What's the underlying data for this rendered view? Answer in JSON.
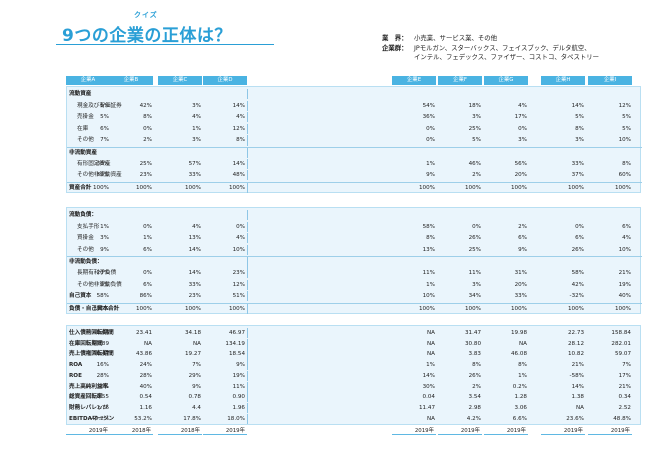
{
  "header": {
    "quiz_tag": "クイズ",
    "title": "9つの企業の正体は？",
    "industry_label": "業　界：",
    "industry_value": "小売業、サービス業、その他",
    "group_label": "企業群：",
    "group_line1": "JPモルガン、スターバックス、フェイスブック、デルタ航空、",
    "group_line2": "インテル、フェデックス、ファイザー、コストコ、タペストリー"
  },
  "companies": [
    "企業A",
    "企業B",
    "企業C",
    "企業D",
    "企業E",
    "企業F",
    "企業G",
    "企業H",
    "企業I"
  ],
  "section1": {
    "rows": [
      {
        "label": "流動資産",
        "style": "bold",
        "values": [
          "",
          "",
          "",
          "",
          "",
          "",
          "",
          "",
          ""
        ]
      },
      {
        "label": "現金及び有価証券",
        "style": "indent",
        "values": [
          "5%",
          "42%",
          "3%",
          "14%",
          "54%",
          "18%",
          "4%",
          "14%",
          "12%"
        ]
      },
      {
        "label": "売掛金",
        "style": "indent",
        "values": [
          "5%",
          "8%",
          "4%",
          "4%",
          "36%",
          "3%",
          "17%",
          "5%",
          "5%"
        ]
      },
      {
        "label": "在庫",
        "style": "indent",
        "values": [
          "6%",
          "0%",
          "1%",
          "12%",
          "0%",
          "25%",
          "0%",
          "8%",
          "5%"
        ]
      },
      {
        "label": "その他",
        "style": "indent",
        "values": [
          "7%",
          "2%",
          "3%",
          "8%",
          "0%",
          "5%",
          "3%",
          "3%",
          "10%"
        ]
      },
      {
        "label": "非流動資産",
        "style": "bold rule",
        "values": [
          "",
          "",
          "",
          "",
          "",
          "",
          "",
          "",
          ""
        ]
      },
      {
        "label": "有形固定資産",
        "style": "indent",
        "values": [
          "38%",
          "25%",
          "57%",
          "14%",
          "1%",
          "46%",
          "56%",
          "33%",
          "8%"
        ]
      },
      {
        "label": "その他非流動資産",
        "style": "indent",
        "values": [
          "39%",
          "23%",
          "33%",
          "48%",
          "9%",
          "2%",
          "20%",
          "37%",
          "60%"
        ]
      },
      {
        "label": "資産合計",
        "style": "bold rule",
        "values": [
          "100%",
          "100%",
          "100%",
          "100%",
          "100%",
          "100%",
          "100%",
          "100%",
          "100%"
        ]
      }
    ]
  },
  "section2": {
    "rows": [
      {
        "label": "流動負債：",
        "style": "bold",
        "values": [
          "",
          "",
          "",
          "",
          "",
          "",
          "",
          "",
          ""
        ]
      },
      {
        "label": "支払手形",
        "style": "indent",
        "values": [
          "1%",
          "0%",
          "4%",
          "0%",
          "58%",
          "0%",
          "2%",
          "0%",
          "6%"
        ]
      },
      {
        "label": "買掛金",
        "style": "indent",
        "values": [
          "3%",
          "1%",
          "13%",
          "4%",
          "8%",
          "26%",
          "6%",
          "6%",
          "4%"
        ]
      },
      {
        "label": "その他",
        "style": "indent",
        "values": [
          "9%",
          "6%",
          "14%",
          "10%",
          "13%",
          "25%",
          "9%",
          "26%",
          "10%"
        ]
      },
      {
        "label": "非流動負債：",
        "style": "bold rule",
        "values": [
          "",
          "",
          "",
          "",
          "",
          "",
          "",
          "",
          ""
        ]
      },
      {
        "label": "長期有利子負債",
        "style": "indent",
        "values": [
          "20%",
          "0%",
          "14%",
          "23%",
          "11%",
          "11%",
          "31%",
          "58%",
          "21%"
        ]
      },
      {
        "label": "その他非流動負債",
        "style": "indent",
        "values": [
          "9%",
          "6%",
          "33%",
          "12%",
          "1%",
          "3%",
          "20%",
          "42%",
          "19%"
        ]
      },
      {
        "label": "自己資本",
        "style": "bold",
        "values": [
          "58%",
          "86%",
          "23%",
          "51%",
          "10%",
          "34%",
          "33%",
          "-32%",
          "40%"
        ]
      },
      {
        "label": "負債・自己資本合計",
        "style": "bold rule",
        "values": [
          "100%",
          "100%",
          "100%",
          "100%",
          "100%",
          "100%",
          "100%",
          "100%",
          "100%"
        ]
      }
    ]
  },
  "section3": {
    "rows": [
      {
        "label": "仕入債務回転期間",
        "style": "bold",
        "values": [
          "48.66",
          "23.41",
          "34.18",
          "46.97",
          "NA",
          "31.47",
          "19.98",
          "22.73",
          "158.84"
        ]
      },
      {
        "label": "在庫回転期間",
        "style": "bold",
        "values": [
          "97.89",
          "NA",
          "NA",
          "134.19",
          "NA",
          "30.80",
          "NA",
          "28.12",
          "282.01"
        ]
      },
      {
        "label": "売上債権回転期間",
        "style": "bold",
        "values": [
          "36.47",
          "43.86",
          "19.27",
          "18.54",
          "NA",
          "3.83",
          "46.08",
          "10.82",
          "59.07"
        ]
      },
      {
        "label": "ROA",
        "style": "bold",
        "values": [
          "16%",
          "24%",
          "7%",
          "9%",
          "1%",
          "8%",
          "8%",
          "21%",
          "7%"
        ]
      },
      {
        "label": "ROE",
        "style": "bold",
        "values": [
          "28%",
          "28%",
          "29%",
          "19%",
          "14%",
          "26%",
          "1%",
          "-58%",
          "17%"
        ]
      },
      {
        "label": "売上高純利益率",
        "style": "bold",
        "values": [
          "30%",
          "40%",
          "9%",
          "11%",
          "30%",
          "2%",
          "0.2%",
          "14%",
          "21%"
        ]
      },
      {
        "label": "総資産回転率",
        "style": "bold",
        "values": [
          "0.55",
          "0.54",
          "0.78",
          "0.90",
          "0.04",
          "3.54",
          "1.28",
          "1.38",
          "0.34"
        ]
      },
      {
        "label": "財務レバレッジ",
        "style": "bold",
        "values": [
          "1.76",
          "1.16",
          "4.4",
          "1.96",
          "11.47",
          "2.98",
          "3.06",
          "NA",
          "2.52"
        ]
      },
      {
        "label": "EBITDAマージン",
        "style": "bold",
        "values": [
          "49.2%",
          "53.2%",
          "17.8%",
          "18.0%",
          "NA",
          "4.2%",
          "6.6%",
          "23.6%",
          "48.8%"
        ]
      }
    ],
    "years": [
      "2019年",
      "2018年",
      "2018年",
      "2019年",
      "2019年",
      "2019年",
      "2019年",
      "2019年",
      "2019年"
    ]
  }
}
